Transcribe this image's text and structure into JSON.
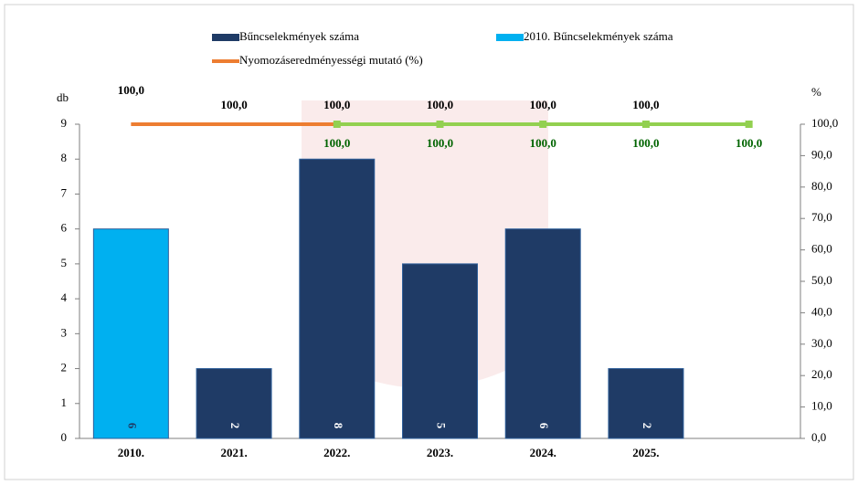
{
  "chart_data": {
    "type": "bar",
    "categories": [
      "2010.",
      "2021.",
      "2022.",
      "2023.",
      "2024.",
      "2025.",
      null
    ],
    "series": [
      {
        "name": "Bűncselekmények száma",
        "color": "#1f3b66",
        "label_color": "#ffffff",
        "values": [
          null,
          2,
          8,
          5,
          6,
          2,
          null
        ]
      },
      {
        "name": "2010. Bűncselekmények száma",
        "color": "#00b0f0",
        "label_color": "#1f3b66",
        "values": [
          6,
          null,
          null,
          null,
          null,
          null,
          null
        ]
      },
      {
        "name": "Nyomozáseredményességi mutató (%)",
        "type": "line",
        "axis": "y2",
        "color": "#ed7d31",
        "label_color": "#000000",
        "values": [
          100,
          100,
          100,
          100,
          100,
          100,
          null
        ],
        "value_labels": [
          "100,0",
          "100,0",
          "100,0",
          "100,0",
          "100,0",
          "100,0",
          null
        ]
      },
      {
        "type": "line",
        "axis": "y2",
        "color": "#92d050",
        "label_color": "#006400",
        "values": [
          null,
          null,
          100,
          100,
          100,
          100,
          100
        ],
        "value_labels": [
          null,
          null,
          "100,0",
          "100,0",
          "100,0",
          "100,0",
          "100,0"
        ]
      }
    ],
    "ylabel": "db",
    "y2label": "%",
    "ylim": [
      0,
      9
    ],
    "yticks": [
      0,
      1,
      2,
      3,
      4,
      5,
      6,
      7,
      8,
      9
    ],
    "y2lim": [
      0,
      100
    ],
    "y2ticks": [
      {
        "value": 0,
        "label": "0,0"
      },
      {
        "value": 10,
        "label": "10,0"
      },
      {
        "value": 20,
        "label": "20,0"
      },
      {
        "value": 30,
        "label": "30,0"
      },
      {
        "value": 40,
        "label": "40,0"
      },
      {
        "value": 50,
        "label": "50,0"
      },
      {
        "value": 60,
        "label": "60,0"
      },
      {
        "value": 70,
        "label": "70,0"
      },
      {
        "value": 80,
        "label": "80,0"
      },
      {
        "value": 90,
        "label": "90,0"
      },
      {
        "value": 100,
        "label": "100,0"
      }
    ]
  }
}
